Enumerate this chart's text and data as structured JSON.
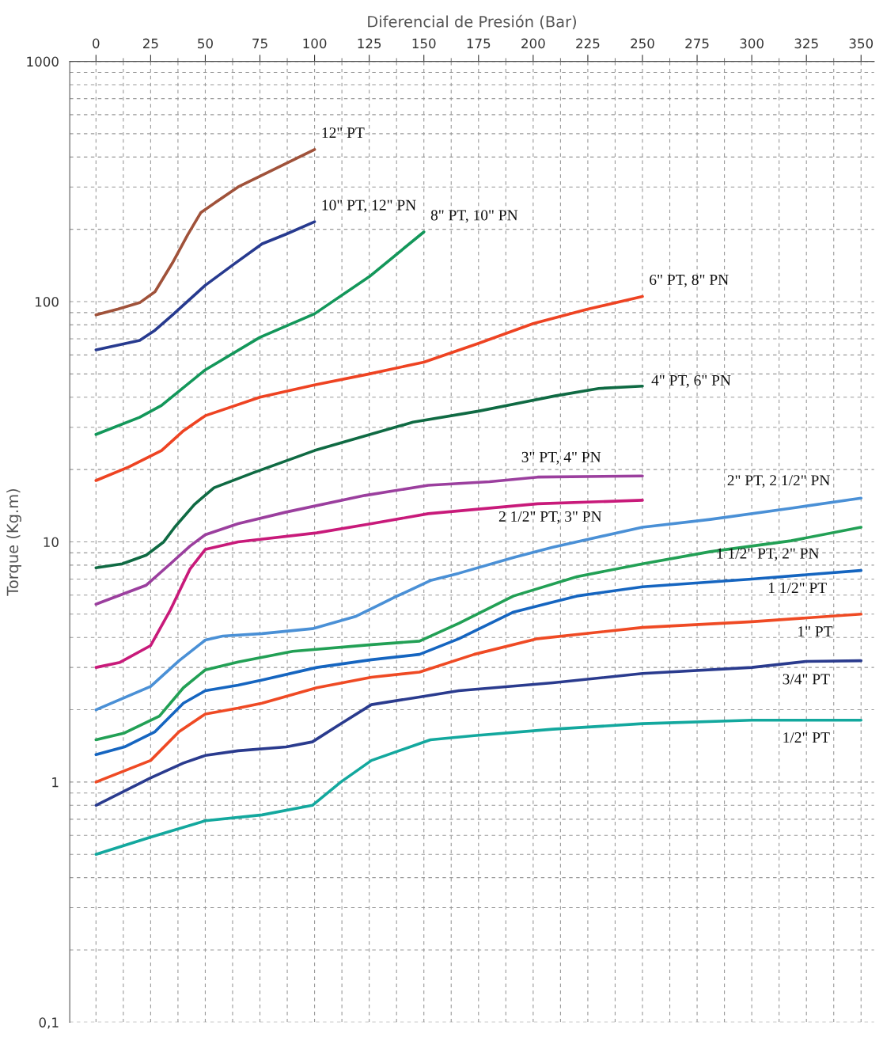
{
  "chart_data": {
    "type": "line",
    "xlabel": "Diferencial de Presión (Bar)",
    "ylabel": "Torque (Kg.m)",
    "log": "y",
    "xlim": [
      -12,
      356
    ],
    "xticks": [
      0,
      25,
      50,
      75,
      100,
      125,
      150,
      175,
      200,
      225,
      250,
      275,
      300,
      325,
      350
    ],
    "ylim": [
      0.1,
      1000
    ],
    "yticks": [
      {
        "value": 0.1,
        "label": "0,1"
      },
      1,
      10,
      100,
      1000
    ],
    "grid": true,
    "legend": false,
    "marker": "none",
    "line_style": "solid",
    "series": [
      {
        "name": "12\" PT",
        "color": "#a0523a",
        "x": [
          0,
          10,
          20,
          27,
          35,
          42,
          48,
          55,
          65,
          80,
          100
        ],
        "values": [
          88,
          93,
          99,
          110,
          145,
          190,
          235,
          260,
          300,
          350,
          430
        ]
      },
      {
        "name": "10\" PT, 12\" PN",
        "color": "#273a8f",
        "x": [
          0,
          20,
          27,
          35,
          50,
          63,
          76,
          87,
          100
        ],
        "values": [
          63,
          69,
          76,
          88,
          117,
          143,
          174,
          191,
          215
        ]
      },
      {
        "name": "8\" PT, 10\" PN",
        "color": "#13975a",
        "x": [
          0,
          20,
          30,
          50,
          75,
          100,
          125,
          150
        ],
        "values": [
          28,
          33,
          37,
          52,
          71,
          89,
          127,
          195
        ]
      },
      {
        "name": "6\" PT, 8\" PN",
        "color": "#ee4322",
        "x": [
          0,
          15,
          30,
          40,
          50,
          75,
          100,
          125,
          150,
          175,
          200,
          225,
          250
        ],
        "values": [
          18,
          20.5,
          24,
          29,
          33.5,
          40,
          45,
          50,
          56,
          67,
          81,
          93,
          105
        ]
      },
      {
        "name": "4\" PT, 6\" PN",
        "color": "#0f6a43",
        "x": [
          0,
          12,
          23,
          31,
          36,
          45,
          54,
          72,
          100,
          145,
          175,
          210,
          230,
          250
        ],
        "values": [
          7.8,
          8.1,
          8.8,
          10,
          11.5,
          14.3,
          16.8,
          19.4,
          24,
          31.5,
          35,
          40.5,
          43.5,
          44.5
        ]
      },
      {
        "name": "3\" PT, 4\" PN",
        "color": "#9b3f9e",
        "x": [
          0,
          11,
          23,
          34,
          43,
          50,
          65,
          87,
          123,
          152,
          180,
          202,
          250
        ],
        "values": [
          5.5,
          6,
          6.6,
          8.1,
          9.6,
          10.7,
          11.9,
          13.3,
          15.6,
          17.2,
          17.8,
          18.6,
          18.8
        ]
      },
      {
        "name": "2 1/2\" PT, 3\" PN",
        "color": "#c81a7a",
        "x": [
          0,
          11,
          25,
          34,
          43,
          50,
          65,
          101,
          126,
          152,
          202,
          250
        ],
        "values": [
          3.0,
          3.15,
          3.7,
          5.2,
          7.7,
          9.3,
          10,
          10.9,
          11.9,
          13.1,
          14.4,
          14.9
        ]
      },
      {
        "name": "2\" PT, 2 1/2\" PN",
        "color": "#4a90d6",
        "x": [
          0,
          25,
          38,
          50,
          58,
          76,
          99,
          119,
          137,
          153,
          166,
          191,
          209,
          250,
          281,
          318,
          350
        ],
        "values": [
          2.0,
          2.5,
          3.2,
          3.9,
          4.05,
          4.15,
          4.35,
          4.9,
          5.9,
          6.9,
          7.4,
          8.6,
          9.5,
          11.5,
          12.4,
          13.8,
          15.2
        ]
      },
      {
        "name": "1 1/2\" PT, 2\" PN",
        "color": "#22a055",
        "x": [
          0,
          13,
          29,
          40,
          50,
          65,
          90,
          126,
          148,
          166,
          191,
          220,
          250,
          281,
          318,
          350
        ],
        "values": [
          1.5,
          1.6,
          1.88,
          2.47,
          2.93,
          3.16,
          3.5,
          3.73,
          3.86,
          4.58,
          5.95,
          7.16,
          8.1,
          9.1,
          10.1,
          11.5
        ]
      },
      {
        "name": "1 1/2\" PT",
        "color": "#1565c0",
        "x": [
          0,
          13,
          27,
          40,
          50,
          65,
          76,
          101,
          126,
          148,
          166,
          191,
          220,
          250,
          300,
          350
        ],
        "values": [
          1.3,
          1.4,
          1.62,
          2.13,
          2.4,
          2.53,
          2.66,
          3.0,
          3.23,
          3.4,
          3.95,
          5.1,
          5.95,
          6.5,
          7.0,
          7.6
        ]
      },
      {
        "name": "1\" PT",
        "color": "#ef4a24",
        "x": [
          0,
          25,
          38,
          50,
          65,
          76,
          101,
          126,
          148,
          173,
          202,
          250,
          300,
          350
        ],
        "values": [
          1.0,
          1.23,
          1.62,
          1.92,
          2.03,
          2.13,
          2.47,
          2.73,
          2.87,
          3.4,
          3.95,
          4.4,
          4.65,
          5.0
        ]
      },
      {
        "name": "3/4\" PT",
        "color": "#2a3b8e",
        "x": [
          0,
          25,
          40,
          50,
          65,
          87,
          99,
          112,
          126,
          148,
          166,
          209,
          250,
          300,
          325,
          350
        ],
        "values": [
          0.8,
          1.04,
          1.2,
          1.29,
          1.35,
          1.4,
          1.47,
          1.75,
          2.1,
          2.26,
          2.4,
          2.59,
          2.83,
          3.0,
          3.18,
          3.2
        ]
      },
      {
        "name": "1/2\" PT",
        "color": "#13a89e",
        "x": [
          0,
          25,
          50,
          76,
          99,
          112,
          126,
          153,
          173,
          209,
          250,
          300,
          350
        ],
        "values": [
          0.5,
          0.59,
          0.69,
          0.73,
          0.8,
          1.0,
          1.23,
          1.5,
          1.56,
          1.66,
          1.75,
          1.81,
          1.81
        ]
      }
    ]
  }
}
